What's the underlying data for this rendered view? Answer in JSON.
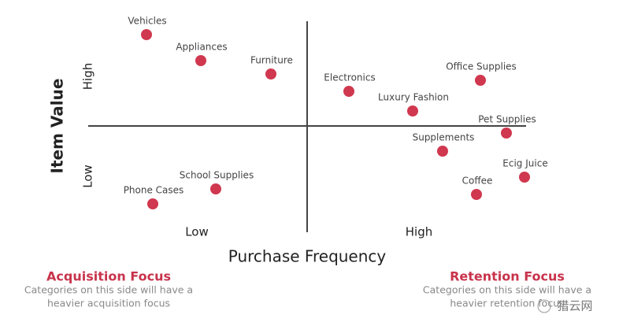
{
  "axes": {
    "y_label": "Item Value",
    "y_high": "High",
    "y_low": "Low",
    "x_label": "Purchase Frequency",
    "x_low": "Low",
    "x_high": "High"
  },
  "nodes": [
    {
      "label": "Vehicles"
    },
    {
      "label": "Appliances"
    },
    {
      "label": "Furniture"
    },
    {
      "label": "Electronics"
    },
    {
      "label": "Office Supplies"
    },
    {
      "label": "Luxury Fashion"
    },
    {
      "label": "Pet Supplies"
    },
    {
      "label": "Supplements"
    },
    {
      "label": "Ecig Juice"
    },
    {
      "label": "Coffee"
    },
    {
      "label": "School Supplies"
    },
    {
      "label": "Phone Cases"
    }
  ],
  "notes": [
    {
      "title": "Acquisition Focus",
      "lines": [
        "Categories on this side will have a",
        "heavier acquisition focus"
      ]
    },
    {
      "title": "Retention Focus",
      "lines": [
        "Categories on this side will have a",
        "heavier retention focus"
      ]
    }
  ],
  "watermark": "猎云网"
}
